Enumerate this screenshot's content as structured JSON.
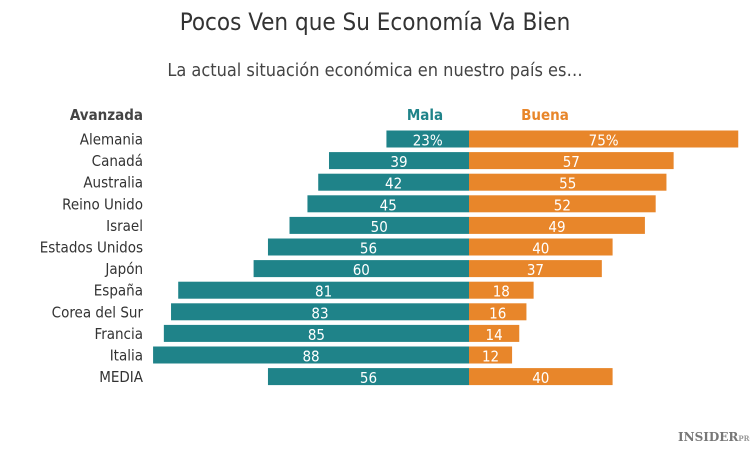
{
  "chart_data": {
    "type": "bar",
    "title": "Pocos Ven que Su Economía Va Bien",
    "subtitle": "La actual situación económica en nuestro país es…",
    "group_label": "Avanzada",
    "categories": [
      "Alemania",
      "Canadá",
      "Australia",
      "Reino Unido",
      "Israel",
      "Estados Unidos",
      "Japón",
      "España",
      "Corea del Sur",
      "Francia",
      "Italia",
      "MEDIA"
    ],
    "series": [
      {
        "name": "Mala",
        "color": "#1f8389",
        "values": [
          23,
          39,
          42,
          45,
          50,
          56,
          60,
          81,
          83,
          85,
          88,
          56
        ]
      },
      {
        "name": "Buena",
        "color": "#e8862a",
        "values": [
          75,
          57,
          55,
          52,
          49,
          40,
          37,
          18,
          16,
          14,
          12,
          40
        ]
      }
    ],
    "first_label_suffix": "%",
    "orientation": "horizontal-diverging"
  },
  "logo": {
    "text": "INSIDER",
    "sup": "PRO"
  }
}
